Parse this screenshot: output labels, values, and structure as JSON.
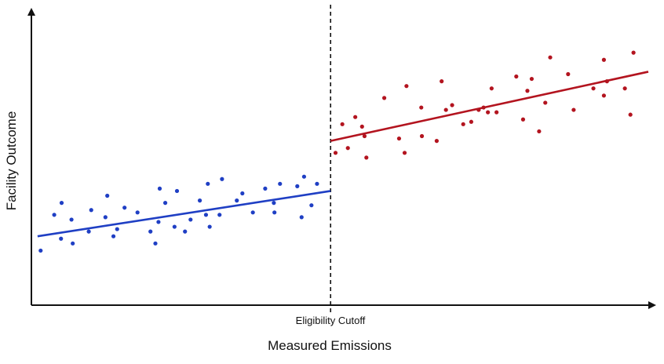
{
  "chart_data": {
    "type": "scatter",
    "title": "",
    "xlabel": "Measured Emissions",
    "ylabel": "Facility Outcome",
    "xlim": [
      0,
      100
    ],
    "ylim": [
      0,
      100
    ],
    "grid": false,
    "cutoff": {
      "x": 48.5,
      "label": "Eligibility Cutoff"
    },
    "series": [
      {
        "color": "#1f3fc4",
        "points": [
          [
            1.5,
            14
          ],
          [
            3.7,
            29
          ],
          [
            4.8,
            19
          ],
          [
            4.9,
            34
          ],
          [
            6.7,
            17
          ],
          [
            6.5,
            27
          ],
          [
            9.3,
            22
          ],
          [
            9.7,
            31
          ],
          [
            12,
            28
          ],
          [
            12.3,
            37
          ],
          [
            13.3,
            20
          ],
          [
            13.9,
            23
          ],
          [
            15.1,
            32
          ],
          [
            17.2,
            30
          ],
          [
            19.3,
            22
          ],
          [
            20.1,
            17
          ],
          [
            20.6,
            26
          ],
          [
            20.8,
            40
          ],
          [
            21.7,
            34
          ],
          [
            23.2,
            24
          ],
          [
            23.6,
            39
          ],
          [
            24.9,
            22
          ],
          [
            25.8,
            27
          ],
          [
            27.3,
            35
          ],
          [
            28.3,
            29
          ],
          [
            28.6,
            42
          ],
          [
            28.9,
            24
          ],
          [
            30.9,
            44
          ],
          [
            30.5,
            29
          ],
          [
            33.3,
            35
          ],
          [
            34.2,
            38
          ],
          [
            35.9,
            30
          ],
          [
            37.9,
            40
          ],
          [
            39.3,
            34
          ],
          [
            39.4,
            30
          ],
          [
            40.3,
            42
          ],
          [
            43.1,
            41
          ],
          [
            43.8,
            28
          ],
          [
            44.2,
            45
          ],
          [
            45.4,
            33
          ],
          [
            46.3,
            42
          ]
        ],
        "fit": {
          "x": [
            1,
            48.5
          ],
          "y": [
            20,
            39
          ]
        }
      },
      {
        "color": "#b3141f",
        "points": [
          [
            49.3,
            55
          ],
          [
            50.4,
            67
          ],
          [
            51.3,
            57
          ],
          [
            52.5,
            70
          ],
          [
            53.6,
            66
          ],
          [
            54.3,
            53
          ],
          [
            54,
            62
          ],
          [
            57.2,
            78
          ],
          [
            59.6,
            61
          ],
          [
            60.5,
            55
          ],
          [
            60.8,
            83
          ],
          [
            63.2,
            74
          ],
          [
            63.3,
            62
          ],
          [
            65.7,
            60
          ],
          [
            66.5,
            85
          ],
          [
            67.2,
            73
          ],
          [
            68.2,
            75
          ],
          [
            70,
            67
          ],
          [
            71.3,
            68
          ],
          [
            72.5,
            73
          ],
          [
            73.3,
            74
          ],
          [
            74,
            72
          ],
          [
            74.6,
            82
          ],
          [
            75.4,
            72
          ],
          [
            78.6,
            87
          ],
          [
            79.7,
            69
          ],
          [
            80.4,
            81
          ],
          [
            81.1,
            86
          ],
          [
            82.3,
            64
          ],
          [
            83.3,
            76
          ],
          [
            84.1,
            95
          ],
          [
            87,
            88
          ],
          [
            87.9,
            73
          ],
          [
            91.1,
            82
          ],
          [
            92.8,
            79
          ],
          [
            92.8,
            94
          ],
          [
            93.3,
            85
          ],
          [
            96.2,
            82
          ],
          [
            97.1,
            71
          ],
          [
            97.6,
            97
          ]
        ],
        "fit": {
          "x": [
            48.5,
            100
          ],
          "y": [
            60,
            89
          ]
        }
      }
    ]
  }
}
